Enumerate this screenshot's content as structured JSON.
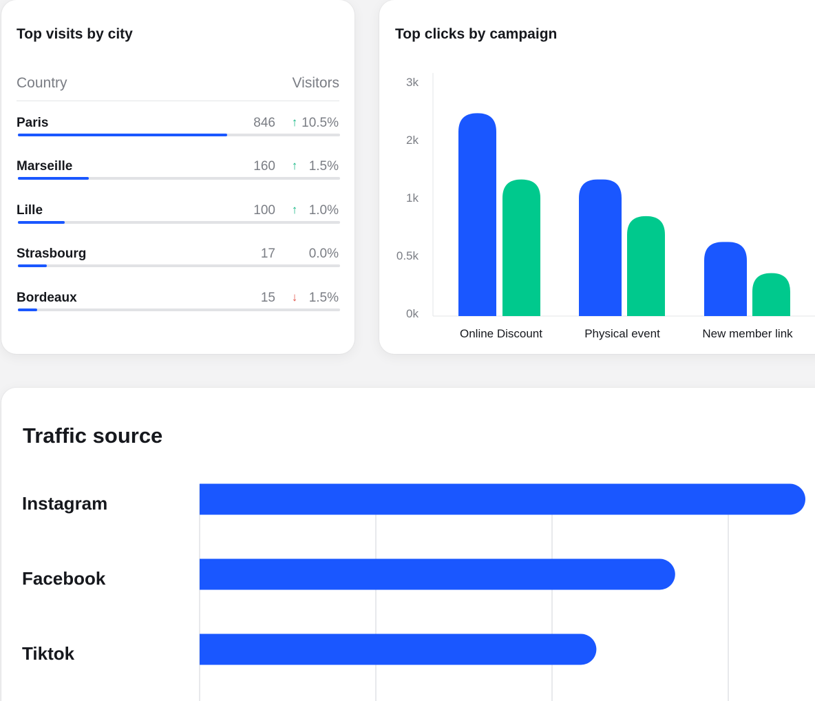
{
  "city_card": {
    "title": "Top visits by city",
    "col_country": "Country",
    "col_visitors": "Visitors",
    "rows": [
      {
        "city": "Paris",
        "visitors": "846",
        "trend": "up",
        "arrow": "↑",
        "change": "10.5%",
        "share": 0.65
      },
      {
        "city": "Marseille",
        "visitors": "160",
        "trend": "up",
        "arrow": "↑",
        "change": "1.5%",
        "share": 0.22
      },
      {
        "city": "Lille",
        "visitors": "100",
        "trend": "up",
        "arrow": "↑",
        "change": "1.0%",
        "share": 0.145
      },
      {
        "city": "Strasbourg",
        "visitors": "17",
        "trend": "flat",
        "arrow": "",
        "change": "0.0%",
        "share": 0.09
      },
      {
        "city": "Bordeaux",
        "visitors": "15",
        "trend": "down",
        "arrow": "↓",
        "change": "1.5%",
        "share": 0.06
      }
    ]
  },
  "campaign_card": {
    "title": "Top clicks by campaign"
  },
  "traffic_card": {
    "title": "Traffic source"
  },
  "colors": {
    "blue": "#1a57ff",
    "green": "#00c98d",
    "up": "#14b784",
    "down": "#e0554b",
    "grid": "#e8e9ec"
  },
  "chart_data": [
    {
      "type": "bar",
      "title": "Top clicks by campaign",
      "categories": [
        "Online Discount",
        "Physical event",
        "New member link"
      ],
      "y_ticks": [
        "0k",
        "0.5k",
        "1k",
        "2k",
        "3k"
      ],
      "series": [
        {
          "values": [
            2.6,
            1.75,
            0.95
          ]
        },
        {
          "values": [
            1.75,
            1.28,
            0.55
          ]
        }
      ],
      "ylim": [
        0,
        3
      ]
    },
    {
      "type": "bar",
      "orientation": "horizontal",
      "title": "Traffic source",
      "categories": [
        "Instagram",
        "Facebook",
        "Tiktok"
      ],
      "values": [
        1.0,
        0.785,
        0.655
      ]
    }
  ]
}
